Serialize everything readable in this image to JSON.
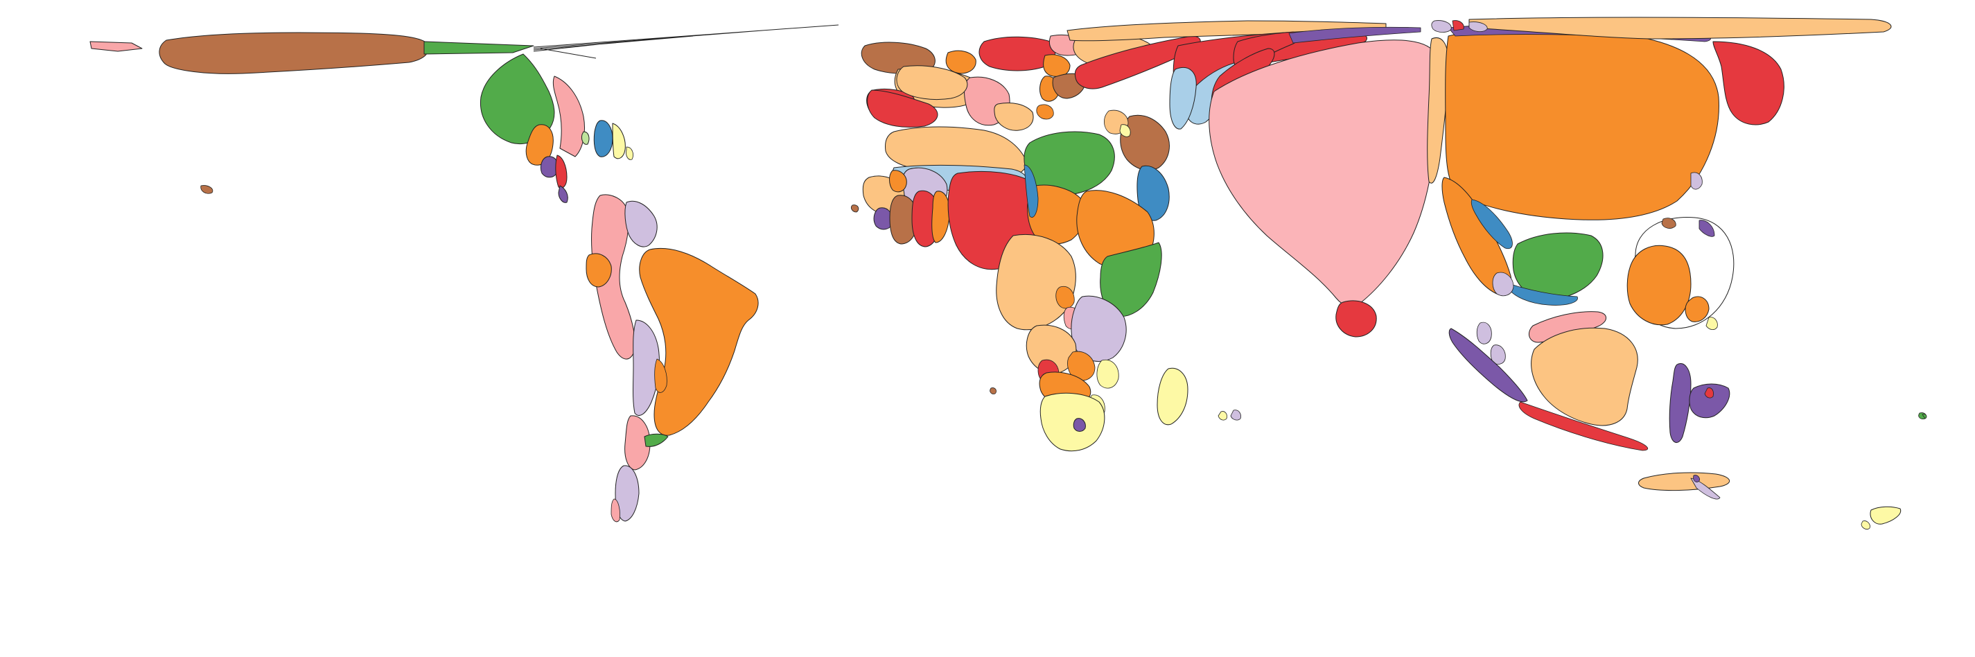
{
  "map": {
    "type": "cartogram",
    "projection": "distorted-equirectangular",
    "background": "#ffffff",
    "border_color": "#222222",
    "palette": {
      "red": "#e5393f",
      "pink": "#f9a7a9",
      "light_pink": "#fbb4b8",
      "light_green": "#bfe39c",
      "green": "#52ab4a",
      "orange": "#f68e2b",
      "peach": "#fcc482",
      "brown": "#b87148",
      "blue": "#3f8cc3",
      "light_blue": "#a9cfe8",
      "lavender": "#cfbfdf",
      "purple": "#7b58a8",
      "yellow": "#fdf9a5"
    },
    "regions": [
      {
        "name": "alaska-region",
        "color": "#b87148"
      },
      {
        "name": "canada-region",
        "color": "#52ab4a"
      },
      {
        "name": "united-states-region",
        "color": "#f9a7a9"
      },
      {
        "name": "mexico-region",
        "color": "#f68e2b"
      },
      {
        "name": "central-america-region",
        "color": "#e5393f"
      },
      {
        "name": "cuba-region",
        "color": "#3f8cc3"
      },
      {
        "name": "south-america-north-region",
        "color": "#f9a7a9"
      },
      {
        "name": "venezuela-region",
        "color": "#cfbfdf"
      },
      {
        "name": "colombia-region",
        "color": "#f68e2b"
      },
      {
        "name": "brazil-region",
        "color": "#bfe39c"
      },
      {
        "name": "andes-region",
        "color": "#cfbfdf"
      },
      {
        "name": "argentina-chile-region",
        "color": "#f9a7a9"
      },
      {
        "name": "patagonia-region",
        "color": "#cfbfdf"
      },
      {
        "name": "scandinavia-region",
        "color": "#b87148"
      },
      {
        "name": "western-europe-region",
        "color": "#fcc482"
      },
      {
        "name": "uk-ireland-region",
        "color": "#e5393f"
      },
      {
        "name": "central-europe-region",
        "color": "#f9a7a9"
      },
      {
        "name": "eastern-europe-region",
        "color": "#e5393f"
      },
      {
        "name": "north-africa-region",
        "color": "#fcc482"
      },
      {
        "name": "west-africa-region",
        "color": "#fcc482"
      },
      {
        "name": "nigeria-region",
        "color": "#e5393f"
      },
      {
        "name": "sahel-region",
        "color": "#a9cfe8"
      },
      {
        "name": "ethiopia-region",
        "color": "#52ab4a"
      },
      {
        "name": "east-africa-region",
        "color": "#f68e2b"
      },
      {
        "name": "kenya-region",
        "color": "#52ab4a"
      },
      {
        "name": "congo-region",
        "color": "#fcc482"
      },
      {
        "name": "southern-africa-region",
        "color": "#cfbfdf"
      },
      {
        "name": "south-africa-region",
        "color": "#b87148"
      },
      {
        "name": "madagascar-region",
        "color": "#fdf9a5"
      },
      {
        "name": "middle-east-region",
        "color": "#b87148"
      },
      {
        "name": "arabia-region",
        "color": "#3f8cc3"
      },
      {
        "name": "russia-central-asia-region",
        "color": "#e5393f"
      },
      {
        "name": "india-region",
        "color": "#f9a7a9"
      },
      {
        "name": "sri-lanka-region",
        "color": "#e5393f"
      },
      {
        "name": "china-region",
        "color": "#bfe39c"
      },
      {
        "name": "far-east-russia-region",
        "color": "#e5393f"
      },
      {
        "name": "southeast-asia-region",
        "color": "#f68e2b"
      },
      {
        "name": "vietnam-region",
        "color": "#52ab4a"
      },
      {
        "name": "japan-region",
        "color": "#f68e2b"
      },
      {
        "name": "indonesia-region",
        "color": "#7b58a8"
      },
      {
        "name": "australia-region",
        "color": "#fcc482"
      },
      {
        "name": "new-guinea-region",
        "color": "#7b58a8"
      },
      {
        "name": "new-zealand-region",
        "color": "#fdf9a5"
      },
      {
        "name": "antarctic-strip-region",
        "color": "#fcc482"
      }
    ]
  }
}
